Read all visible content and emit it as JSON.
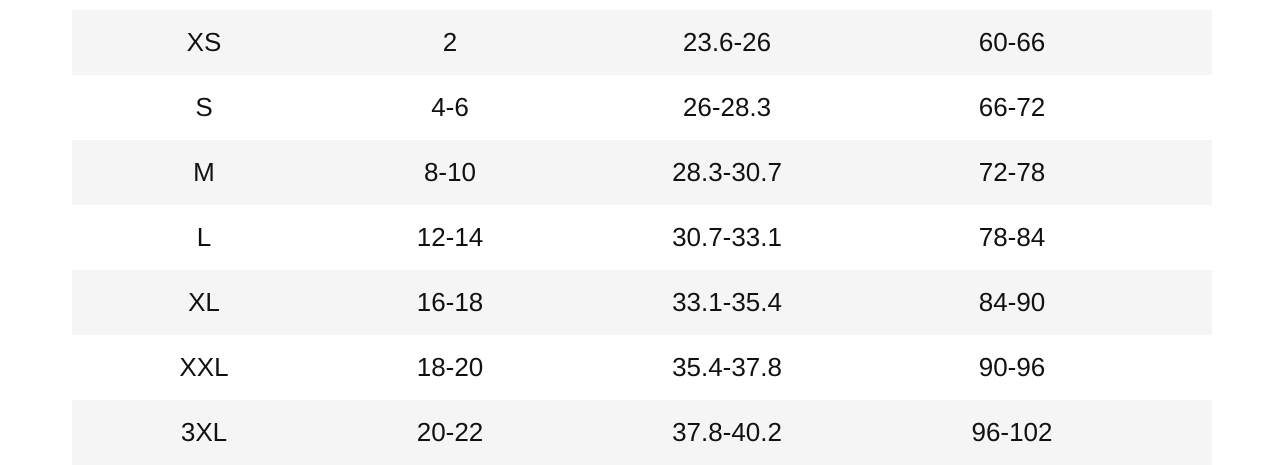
{
  "size_chart": {
    "rows": [
      [
        "XS",
        "2",
        "23.6-26",
        "60-66"
      ],
      [
        "S",
        "4-6",
        "26-28.3",
        "66-72"
      ],
      [
        "M",
        "8-10",
        "28.3-30.7",
        "72-78"
      ],
      [
        "L",
        "12-14",
        "30.7-33.1",
        "78-84"
      ],
      [
        "XL",
        "16-18",
        "33.1-35.4",
        "84-90"
      ],
      [
        "XXL",
        "18-20",
        "35.4-37.8",
        "90-96"
      ],
      [
        "3XL",
        "20-22",
        "37.8-40.2",
        "96-102"
      ]
    ]
  }
}
